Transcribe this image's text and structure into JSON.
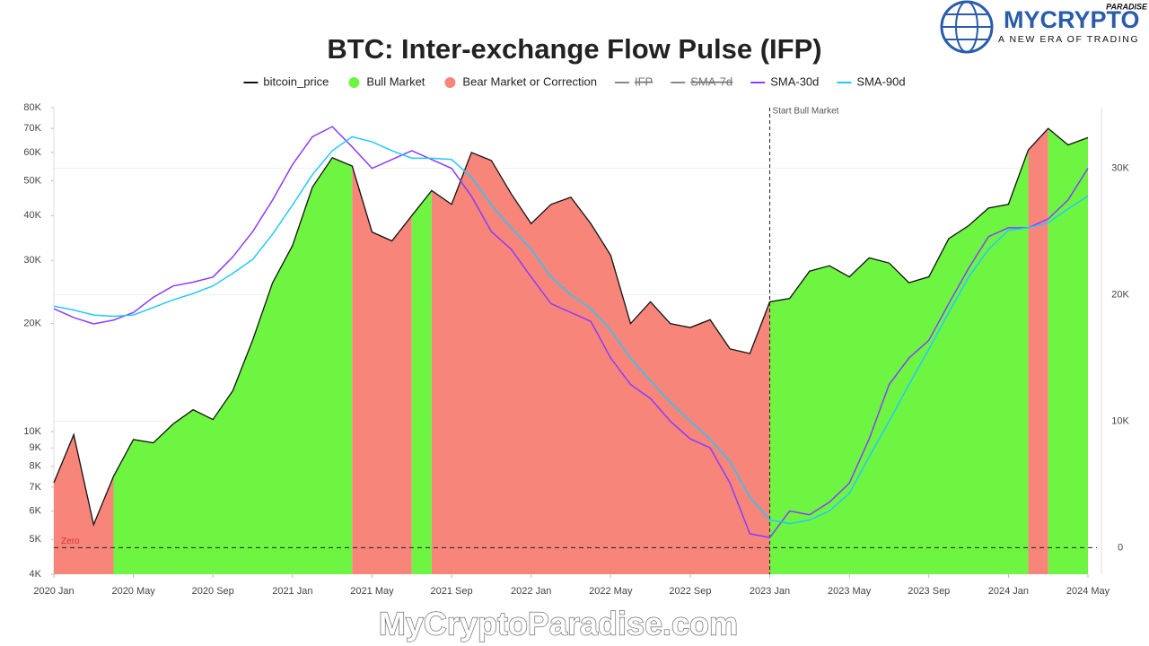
{
  "chart_data": {
    "type": "line",
    "title": "BTC: Inter-exchange Flow Pulse (IFP)",
    "x": [
      "2020-01",
      "2020-02",
      "2020-03",
      "2020-04",
      "2020-05",
      "2020-06",
      "2020-07",
      "2020-08",
      "2020-09",
      "2020-10",
      "2020-11",
      "2020-12",
      "2021-01",
      "2021-02",
      "2021-03",
      "2021-04",
      "2021-05",
      "2021-06",
      "2021-07",
      "2021-08",
      "2021-09",
      "2021-10",
      "2021-11",
      "2021-12",
      "2022-01",
      "2022-02",
      "2022-03",
      "2022-04",
      "2022-05",
      "2022-06",
      "2022-07",
      "2022-08",
      "2022-09",
      "2022-10",
      "2022-11",
      "2022-12",
      "2023-01",
      "2023-02",
      "2023-03",
      "2023-04",
      "2023-05",
      "2023-06",
      "2023-07",
      "2023-08",
      "2023-09",
      "2023-10",
      "2023-11",
      "2023-12",
      "2024-01",
      "2024-02",
      "2024-03",
      "2024-04",
      "2024-05"
    ],
    "xticks": [
      {
        "value": "2020-01",
        "label": "2020 Jan"
      },
      {
        "value": "2020-05",
        "label": "2020 May"
      },
      {
        "value": "2020-09",
        "label": "2020 Sep"
      },
      {
        "value": "2021-01",
        "label": "2021 Jan"
      },
      {
        "value": "2021-05",
        "label": "2021 May"
      },
      {
        "value": "2021-09",
        "label": "2021 Sep"
      },
      {
        "value": "2022-01",
        "label": "2022 Jan"
      },
      {
        "value": "2022-05",
        "label": "2022 May"
      },
      {
        "value": "2022-09",
        "label": "2022 Sep"
      },
      {
        "value": "2023-01",
        "label": "2023 Jan"
      },
      {
        "value": "2023-05",
        "label": "2023 May"
      },
      {
        "value": "2023-09",
        "label": "2023 Sep"
      },
      {
        "value": "2024-01",
        "label": "2024 Jan"
      },
      {
        "value": "2024-05",
        "label": "2024 May"
      }
    ],
    "ylim": [
      4000,
      80000
    ],
    "log_scale": true,
    "yticks": [
      {
        "value": 4000,
        "label": "4K"
      },
      {
        "value": 5000,
        "label": "5K"
      },
      {
        "value": 6000,
        "label": "6K"
      },
      {
        "value": 7000,
        "label": "7K"
      },
      {
        "value": 8000,
        "label": "8K"
      },
      {
        "value": 9000,
        "label": "9K"
      },
      {
        "value": 10000,
        "label": "10K"
      },
      {
        "value": 20000,
        "label": "20K"
      },
      {
        "value": 30000,
        "label": "30K"
      },
      {
        "value": 40000,
        "label": "40K"
      },
      {
        "value": 50000,
        "label": "50K"
      },
      {
        "value": 60000,
        "label": "60K"
      },
      {
        "value": 70000,
        "label": "70K"
      },
      {
        "value": 80000,
        "label": "80K"
      }
    ],
    "y2lim": [
      -2100,
      34800
    ],
    "y2ticks": [
      0,
      {
        "value": 10000,
        "label": "10K"
      },
      {
        "value": 20000,
        "label": "20K"
      },
      {
        "value": 30000,
        "label": "30K"
      }
    ],
    "series": [
      {
        "name": "bitcoin_price",
        "color": "#111111",
        "values": [
          7200,
          9800,
          5500,
          7500,
          9500,
          9300,
          10500,
          11500,
          10800,
          13000,
          18000,
          26000,
          33000,
          48000,
          58000,
          55000,
          36000,
          34000,
          40000,
          47000,
          43000,
          60000,
          57000,
          46000,
          38000,
          43000,
          45000,
          38000,
          31000,
          20000,
          23000,
          20000,
          19500,
          20500,
          17000,
          16500,
          23000,
          23500,
          28000,
          29000,
          27000,
          30500,
          29500,
          26000,
          27000,
          34500,
          37500,
          42000,
          43000,
          61000,
          70000,
          63000,
          66000
        ]
      },
      {
        "name": "IFP",
        "color": "#888888",
        "hidden": true
      },
      {
        "name": "SMA-7d",
        "color": "#888888",
        "hidden": true
      },
      {
        "name": "SMA-30d",
        "color": "#8a3cff",
        "axis": "y2",
        "values": [
          18900,
          18200,
          17700,
          18000,
          18600,
          19800,
          20700,
          21000,
          21400,
          23000,
          25000,
          27500,
          30300,
          32500,
          33300,
          31700,
          30000,
          30700,
          31400,
          30700,
          30000,
          27800,
          25000,
          23600,
          21400,
          19300,
          18600,
          17900,
          15000,
          12900,
          11800,
          10000,
          8600,
          7900,
          5100,
          1100,
          800,
          2900,
          2600,
          3600,
          5100,
          8600,
          12900,
          15000,
          16400,
          19300,
          22100,
          24600,
          25300,
          25300,
          26000,
          27500,
          30000
        ]
      },
      {
        "name": "SMA-90d",
        "color": "#22c8ff",
        "axis": "y2",
        "values": [
          19100,
          18800,
          18400,
          18300,
          18400,
          19000,
          19600,
          20100,
          20700,
          21700,
          22800,
          24800,
          27100,
          29500,
          31400,
          32500,
          32100,
          31400,
          30800,
          30800,
          30700,
          29300,
          27100,
          25300,
          23600,
          21400,
          20000,
          18900,
          17200,
          15000,
          13200,
          11500,
          10000,
          8600,
          6800,
          4000,
          2200,
          1900,
          2200,
          2900,
          4300,
          7200,
          10000,
          12900,
          15700,
          18600,
          21400,
          23600,
          25100,
          25300,
          25700,
          26800,
          27800
        ]
      }
    ],
    "phases": [
      {
        "name": "Bull Market",
        "color": "#6ef542"
      },
      {
        "name": "Bear Market or Correction",
        "color": "#f7857a"
      }
    ],
    "regions": [
      {
        "phase": 1,
        "start": "2020-01",
        "end": "2020-04"
      },
      {
        "phase": 0,
        "start": "2020-04",
        "end": "2021-04"
      },
      {
        "phase": 1,
        "start": "2021-04",
        "end": "2021-07"
      },
      {
        "phase": 0,
        "start": "2021-07",
        "end": "2021-08"
      },
      {
        "phase": 1,
        "start": "2021-08",
        "end": "2023-01"
      },
      {
        "phase": 0,
        "start": "2023-01",
        "end": "2024-02"
      },
      {
        "phase": 1,
        "start": "2024-02",
        "end": "2024-03"
      },
      {
        "phase": 0,
        "start": "2024-03",
        "end": "2024-05"
      }
    ],
    "annotations": [
      {
        "text": "Start Bull Market",
        "x": "2023-01"
      },
      {
        "text": "Zero",
        "y2": 0
      }
    ]
  },
  "branding": {
    "logo_name": "MYCRYPTO",
    "logo_tag": "PARADISE",
    "slogan": "A NEW ERA OF TRADING",
    "watermark": "MyCryptoParadise.com"
  }
}
